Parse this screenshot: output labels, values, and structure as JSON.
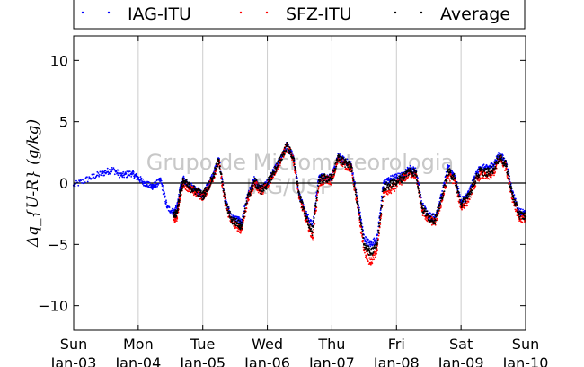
{
  "chart_data": {
    "type": "scatter",
    "title": "",
    "ylabel": "Δq_{U-R} (g/kg)",
    "ylim": [
      -12,
      12
    ],
    "yticks": [
      -10,
      -5,
      0,
      5,
      10
    ],
    "xlim": [
      0,
      7
    ],
    "x_units": "days since Sun Jan-03",
    "xticks": [
      {
        "x": 0,
        "day": "Sun",
        "date": "Jan-03"
      },
      {
        "x": 1,
        "day": "Mon",
        "date": "Jan-04"
      },
      {
        "x": 2,
        "day": "Tue",
        "date": "Jan-05"
      },
      {
        "x": 3,
        "day": "Wed",
        "date": "Jan-06"
      },
      {
        "x": 4,
        "day": "Thu",
        "date": "Jan-07"
      },
      {
        "x": 5,
        "day": "Fri",
        "date": "Jan-08"
      },
      {
        "x": 6,
        "day": "Sat",
        "date": "Jan-09"
      },
      {
        "x": 7,
        "day": "Sun",
        "date": "Jan-10"
      }
    ],
    "grid": "vertical",
    "zero_line": true,
    "legend_position": "top",
    "watermark": [
      "Grupo de Micrometeorologia",
      "IAG/USP"
    ],
    "series": [
      {
        "name": "IAG-ITU",
        "color": "#0000ff",
        "start_x": 0.0,
        "end_x": 7.0,
        "x": [
          0.0,
          0.25,
          0.45,
          0.6,
          0.75,
          0.9,
          1.0,
          1.1,
          1.2,
          1.25,
          1.35,
          1.45,
          1.55,
          1.6,
          1.65,
          1.7,
          1.8,
          1.9,
          2.0,
          2.05,
          2.15,
          2.25,
          2.35,
          2.45,
          2.55,
          2.6,
          2.7,
          2.8,
          2.9,
          3.0,
          3.1,
          3.2,
          3.3,
          3.4,
          3.5,
          3.6,
          3.7,
          3.8,
          3.9,
          4.0,
          4.1,
          4.2,
          4.3,
          4.4,
          4.5,
          4.6,
          4.7,
          4.8,
          4.9,
          5.0,
          5.1,
          5.2,
          5.3,
          5.4,
          5.5,
          5.6,
          5.7,
          5.8,
          5.9,
          6.0,
          6.1,
          6.2,
          6.3,
          6.4,
          6.5,
          6.6,
          6.7,
          6.8,
          6.9,
          7.0
        ],
        "y": [
          -0.2,
          0.4,
          0.8,
          1.1,
          0.6,
          0.8,
          0.4,
          0.0,
          -0.3,
          -0.2,
          0.2,
          -2.0,
          -2.4,
          -2.0,
          -0.5,
          0.3,
          -0.2,
          -0.5,
          -1.0,
          -0.5,
          0.5,
          2.0,
          -1.5,
          -2.8,
          -3.0,
          -3.2,
          -1.0,
          0.3,
          -0.5,
          0.0,
          1.0,
          2.0,
          3.1,
          2.2,
          -1.0,
          -2.5,
          -3.5,
          0.5,
          0.5,
          0.5,
          2.2,
          1.8,
          1.5,
          -1.5,
          -4.5,
          -5.0,
          -4.5,
          0.0,
          0.3,
          0.5,
          0.6,
          1.2,
          1.0,
          -1.8,
          -2.6,
          -2.8,
          -1.0,
          1.3,
          0.6,
          -1.5,
          -1.0,
          0.3,
          1.3,
          1.2,
          1.5,
          2.4,
          1.6,
          -0.8,
          -2.3,
          -2.5
        ]
      },
      {
        "name": "SFZ-ITU",
        "color": "#ff0000",
        "start_x": 1.5,
        "end_x": 7.0,
        "x": [
          1.55,
          1.6,
          1.65,
          1.7,
          1.8,
          1.9,
          2.0,
          2.05,
          2.15,
          2.25,
          2.35,
          2.45,
          2.55,
          2.6,
          2.7,
          2.8,
          2.9,
          3.0,
          3.1,
          3.2,
          3.3,
          3.4,
          3.5,
          3.6,
          3.7,
          3.8,
          3.9,
          4.0,
          4.1,
          4.2,
          4.3,
          4.4,
          4.5,
          4.6,
          4.7,
          4.8,
          4.9,
          5.0,
          5.1,
          5.2,
          5.3,
          5.4,
          5.5,
          5.6,
          5.7,
          5.8,
          5.9,
          6.0,
          6.1,
          6.2,
          6.3,
          6.4,
          6.5,
          6.6,
          6.7,
          6.8,
          6.9,
          7.0
        ],
        "y": [
          -3.0,
          -2.8,
          -1.0,
          0.0,
          -0.5,
          -0.8,
          -1.1,
          -0.7,
          0.3,
          1.8,
          -1.8,
          -3.2,
          -3.6,
          -3.8,
          -1.3,
          0.0,
          -0.7,
          -0.2,
          0.8,
          1.8,
          3.0,
          2.0,
          -1.3,
          -3.0,
          -4.5,
          0.0,
          0.3,
          0.2,
          2.0,
          1.5,
          1.2,
          -2.0,
          -5.5,
          -6.5,
          -5.5,
          -0.8,
          -0.6,
          -0.2,
          0.3,
          0.8,
          0.7,
          -2.3,
          -3.0,
          -3.2,
          -1.5,
          0.6,
          0.2,
          -2.0,
          -1.5,
          -0.2,
          0.7,
          0.5,
          0.8,
          2.0,
          1.2,
          -1.3,
          -2.8,
          -3.0
        ]
      },
      {
        "name": "Average",
        "color": "#000000",
        "start_x": 1.5,
        "end_x": 7.0,
        "x": [
          1.55,
          1.6,
          1.65,
          1.7,
          1.8,
          1.9,
          2.0,
          2.05,
          2.15,
          2.25,
          2.35,
          2.45,
          2.55,
          2.6,
          2.7,
          2.8,
          2.9,
          3.0,
          3.1,
          3.2,
          3.3,
          3.4,
          3.5,
          3.6,
          3.7,
          3.8,
          3.9,
          4.0,
          4.1,
          4.2,
          4.3,
          4.4,
          4.5,
          4.6,
          4.7,
          4.8,
          4.9,
          5.0,
          5.1,
          5.2,
          5.3,
          5.4,
          5.5,
          5.6,
          5.7,
          5.8,
          5.9,
          6.0,
          6.1,
          6.2,
          6.3,
          6.4,
          6.5,
          6.6,
          6.7,
          6.8,
          6.9,
          7.0
        ],
        "y": [
          -2.7,
          -2.4,
          -0.8,
          0.15,
          -0.35,
          -0.65,
          -1.05,
          -0.6,
          0.4,
          1.9,
          -1.65,
          -3.0,
          -3.3,
          -3.5,
          -1.15,
          0.15,
          -0.6,
          -0.1,
          0.9,
          1.9,
          3.05,
          2.1,
          -1.15,
          -2.75,
          -4.0,
          0.25,
          0.4,
          0.35,
          2.1,
          1.65,
          1.35,
          -1.75,
          -5.0,
          -5.75,
          -5.0,
          -0.4,
          -0.15,
          0.15,
          0.45,
          1.0,
          0.85,
          -2.05,
          -2.8,
          -3.0,
          -1.25,
          0.95,
          0.4,
          -1.75,
          -1.25,
          0.05,
          1.0,
          0.85,
          1.15,
          2.2,
          1.4,
          -1.05,
          -2.55,
          -2.75
        ]
      }
    ]
  }
}
